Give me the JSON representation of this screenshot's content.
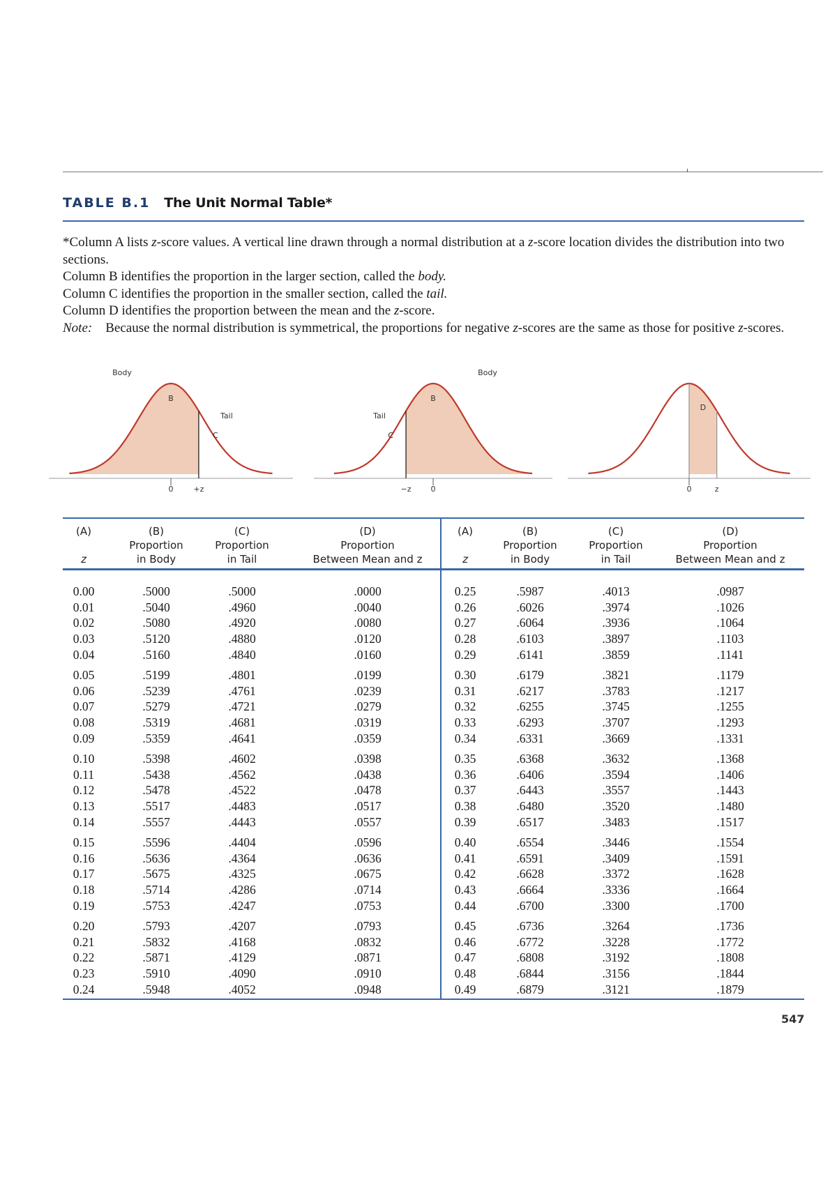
{
  "title": {
    "label": "TABLE B.1",
    "text": "The Unit Normal Table*"
  },
  "notes": {
    "line1_a": "*Column A lists ",
    "z": "z",
    "line1_b": "-score values. A vertical line drawn through a normal distribution at a ",
    "line1_c": "-score location divides the distribution into two sections.",
    "line2_a": "Column B identifies the proportion in the larger section, called the ",
    "line2_em": "body.",
    "line3_a": "Column C identifies the proportion in the smaller section, called the ",
    "line3_em": "tail.",
    "line4_a": "Column D identifies the proportion between the mean and the ",
    "line4_b": "-score.",
    "note_label": "Note:",
    "note_a": "Because the normal distribution is symmetrical, the proportions for negative ",
    "note_b": "-scores are the same as those for positive ",
    "note_c": "-scores."
  },
  "figures": [
    {
      "labels": {
        "body": "Body",
        "area": "B",
        "tail": "Tail",
        "tail_area": "C",
        "zero": "0",
        "z": "+z"
      }
    },
    {
      "labels": {
        "body": "Body",
        "area": "B",
        "tail": "Tail",
        "tail_area": "C",
        "zero": "0",
        "z": "−z"
      }
    },
    {
      "labels": {
        "area": "D",
        "zero": "0",
        "z": "z"
      }
    }
  ],
  "colors": {
    "accent": "#3a67a8",
    "title_label": "#1f3d6b",
    "curve": "#c0392b",
    "fill": "#f0cdb8"
  },
  "table": {
    "headers": [
      {
        "letter": "(A)",
        "line1": "",
        "line2": "z"
      },
      {
        "letter": "(B)",
        "line1": "Proportion",
        "line2": "in Body"
      },
      {
        "letter": "(C)",
        "line1": "Proportion",
        "line2": "in Tail"
      },
      {
        "letter": "(D)",
        "line1": "Proportion",
        "line2": "Between Mean and z"
      }
    ],
    "left": [
      [
        "0.00",
        ".5000",
        ".5000",
        ".0000"
      ],
      [
        "0.01",
        ".5040",
        ".4960",
        ".0040"
      ],
      [
        "0.02",
        ".5080",
        ".4920",
        ".0080"
      ],
      [
        "0.03",
        ".5120",
        ".4880",
        ".0120"
      ],
      [
        "0.04",
        ".5160",
        ".4840",
        ".0160"
      ],
      [
        "0.05",
        ".5199",
        ".4801",
        ".0199"
      ],
      [
        "0.06",
        ".5239",
        ".4761",
        ".0239"
      ],
      [
        "0.07",
        ".5279",
        ".4721",
        ".0279"
      ],
      [
        "0.08",
        ".5319",
        ".4681",
        ".0319"
      ],
      [
        "0.09",
        ".5359",
        ".4641",
        ".0359"
      ],
      [
        "0.10",
        ".5398",
        ".4602",
        ".0398"
      ],
      [
        "0.11",
        ".5438",
        ".4562",
        ".0438"
      ],
      [
        "0.12",
        ".5478",
        ".4522",
        ".0478"
      ],
      [
        "0.13",
        ".5517",
        ".4483",
        ".0517"
      ],
      [
        "0.14",
        ".5557",
        ".4443",
        ".0557"
      ],
      [
        "0.15",
        ".5596",
        ".4404",
        ".0596"
      ],
      [
        "0.16",
        ".5636",
        ".4364",
        ".0636"
      ],
      [
        "0.17",
        ".5675",
        ".4325",
        ".0675"
      ],
      [
        "0.18",
        ".5714",
        ".4286",
        ".0714"
      ],
      [
        "0.19",
        ".5753",
        ".4247",
        ".0753"
      ],
      [
        "0.20",
        ".5793",
        ".4207",
        ".0793"
      ],
      [
        "0.21",
        ".5832",
        ".4168",
        ".0832"
      ],
      [
        "0.22",
        ".5871",
        ".4129",
        ".0871"
      ],
      [
        "0.23",
        ".5910",
        ".4090",
        ".0910"
      ],
      [
        "0.24",
        ".5948",
        ".4052",
        ".0948"
      ]
    ],
    "right": [
      [
        "0.25",
        ".5987",
        ".4013",
        ".0987"
      ],
      [
        "0.26",
        ".6026",
        ".3974",
        ".1026"
      ],
      [
        "0.27",
        ".6064",
        ".3936",
        ".1064"
      ],
      [
        "0.28",
        ".6103",
        ".3897",
        ".1103"
      ],
      [
        "0.29",
        ".6141",
        ".3859",
        ".1141"
      ],
      [
        "0.30",
        ".6179",
        ".3821",
        ".1179"
      ],
      [
        "0.31",
        ".6217",
        ".3783",
        ".1217"
      ],
      [
        "0.32",
        ".6255",
        ".3745",
        ".1255"
      ],
      [
        "0.33",
        ".6293",
        ".3707",
        ".1293"
      ],
      [
        "0.34",
        ".6331",
        ".3669",
        ".1331"
      ],
      [
        "0.35",
        ".6368",
        ".3632",
        ".1368"
      ],
      [
        "0.36",
        ".6406",
        ".3594",
        ".1406"
      ],
      [
        "0.37",
        ".6443",
        ".3557",
        ".1443"
      ],
      [
        "0.38",
        ".6480",
        ".3520",
        ".1480"
      ],
      [
        "0.39",
        ".6517",
        ".3483",
        ".1517"
      ],
      [
        "0.40",
        ".6554",
        ".3446",
        ".1554"
      ],
      [
        "0.41",
        ".6591",
        ".3409",
        ".1591"
      ],
      [
        "0.42",
        ".6628",
        ".3372",
        ".1628"
      ],
      [
        "0.43",
        ".6664",
        ".3336",
        ".1664"
      ],
      [
        "0.44",
        ".6700",
        ".3300",
        ".1700"
      ],
      [
        "0.45",
        ".6736",
        ".3264",
        ".1736"
      ],
      [
        "0.46",
        ".6772",
        ".3228",
        ".1772"
      ],
      [
        "0.47",
        ".6808",
        ".3192",
        ".1808"
      ],
      [
        "0.48",
        ".6844",
        ".3156",
        ".1844"
      ],
      [
        "0.49",
        ".6879",
        ".3121",
        ".1879"
      ]
    ]
  },
  "page_number": "547"
}
